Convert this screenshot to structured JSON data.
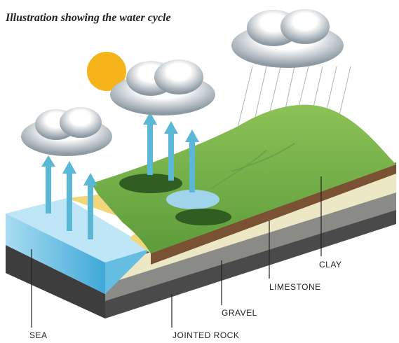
{
  "title": "Illustration showing the water cycle",
  "labels": {
    "sea": "SEA",
    "jointed_rock": "JOINTED ROCK",
    "gravel": "GRAVEL",
    "limestone": "LIMESTONE",
    "clay": "CLAY"
  }
}
